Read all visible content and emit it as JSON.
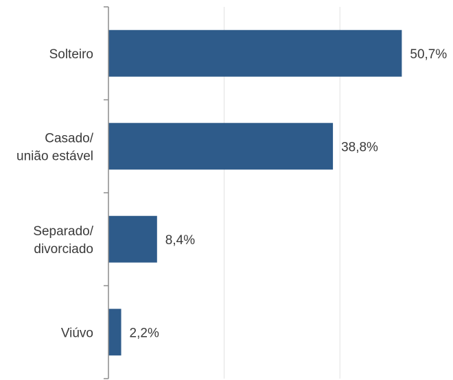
{
  "chart_data": {
    "type": "bar",
    "orientation": "horizontal",
    "categories": [
      [
        "Solteiro"
      ],
      [
        "Casado/",
        "união estável"
      ],
      [
        "Separado/",
        "divorciado"
      ],
      [
        "Viúvo"
      ]
    ],
    "values": [
      50.7,
      38.8,
      8.4,
      2.2
    ],
    "value_labels": [
      "50,7%",
      "38,8%",
      "8,4%",
      "2,2%"
    ],
    "xlim": [
      0,
      60
    ],
    "gridlines": [
      20,
      40
    ],
    "grid": true,
    "legend": "none",
    "colors": {
      "bar": "#2e5b8a",
      "axis": "#8c8c8c",
      "grid": "#e2e2e2",
      "text": "#3a3a3a"
    }
  }
}
